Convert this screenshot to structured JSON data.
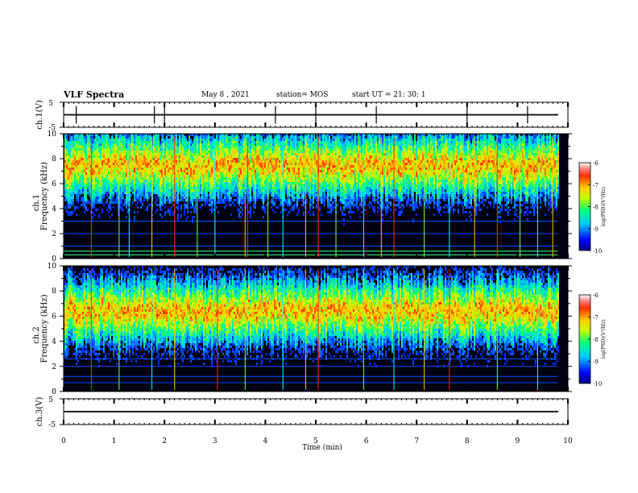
{
  "header": {
    "title": "VLF Spectra",
    "date": "May 8 , 2021",
    "station": "station= MOS",
    "start": "start UT =  21: 30: 1"
  },
  "chart_data": [
    {
      "type": "line",
      "panel": "ch1-waveform",
      "ylabel": "ch.1(V)",
      "yticklabels": [
        "5",
        "-5"
      ],
      "ylim": [
        -5,
        5
      ],
      "xlim": [
        0,
        10
      ],
      "baseline": 0,
      "spikes_min": [
        0.25,
        1.8,
        2.0,
        4.2,
        5.0,
        6.2,
        8.0,
        9.2
      ]
    },
    {
      "type": "heatmap",
      "panel": "ch1-spectrogram",
      "ylabel": [
        "ch.1",
        "Frequency (kHz)"
      ],
      "xlim": [
        0,
        10
      ],
      "ylim": [
        0,
        10
      ],
      "yticklabels": [
        "0",
        "2",
        "4",
        "6",
        "8",
        "10"
      ],
      "data_extent_min": 9.8,
      "colorbar": {
        "label": "log(PSD)(V²/Hz)",
        "range": [
          -10,
          -6
        ],
        "ticklabels": [
          "-6",
          "-7",
          "-8",
          "-9",
          "-10"
        ]
      },
      "band_center_khz": 7.5,
      "band_halfwidth_khz": 2.6,
      "noise_lines_khz": [
        0.3,
        0.6,
        1.0,
        2.0,
        3.0
      ],
      "vertical_spikes_min": [
        0.55,
        1.1,
        1.3,
        1.75,
        2.2,
        2.65,
        3.0,
        3.6,
        3.65,
        4.05,
        4.35,
        4.8,
        5.05,
        5.4,
        5.95,
        6.3,
        6.55,
        7.15,
        7.65,
        8.15,
        8.6,
        9.05,
        9.4,
        9.7
      ]
    },
    {
      "type": "heatmap",
      "panel": "ch2-spectrogram",
      "ylabel": [
        "ch.2",
        "Frequency (kHz)"
      ],
      "xlim": [
        0,
        10
      ],
      "ylim": [
        0,
        10
      ],
      "yticklabels": [
        "0",
        "2",
        "4",
        "6",
        "8",
        "10"
      ],
      "data_extent_min": 9.8,
      "colorbar": {
        "label": "log(PSD)(V²/Hz)",
        "range": [
          -10,
          -6
        ],
        "ticklabels": [
          "-6",
          "-7",
          "-8",
          "-9",
          "-10"
        ]
      },
      "band_center_khz": 6.5,
      "band_halfwidth_khz": 2.6,
      "noise_lines_khz": [
        0.7,
        1.2,
        2.0,
        2.6
      ],
      "vertical_spikes_min": [
        0.55,
        1.1,
        1.75,
        2.2,
        3.05,
        3.6,
        4.35,
        4.8,
        5.05,
        5.95,
        6.55,
        7.15,
        7.65,
        8.6,
        9.4
      ]
    },
    {
      "type": "line",
      "panel": "ch3-waveform",
      "ylabel": "ch.3(V)",
      "yticklabels": [
        "5",
        "-5"
      ],
      "ylim": [
        -5,
        5
      ],
      "xlim": [
        0,
        10
      ],
      "baseline": 0,
      "spikes_min": []
    }
  ],
  "xaxis": {
    "label": "Time (min)",
    "ticklabels": [
      "0",
      "1",
      "2",
      "3",
      "4",
      "5",
      "6",
      "7",
      "8",
      "9",
      "10"
    ],
    "range": [
      0,
      10
    ]
  }
}
